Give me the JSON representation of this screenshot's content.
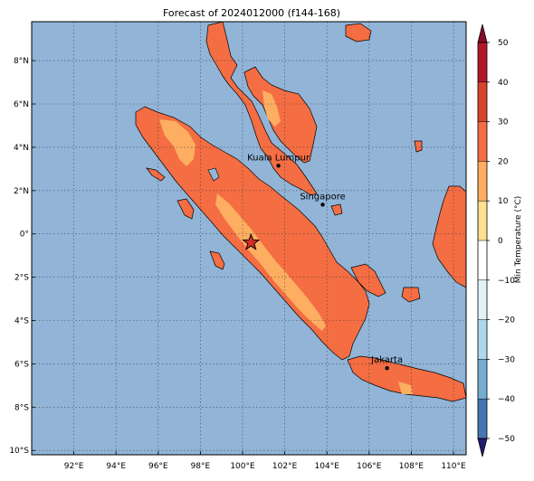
{
  "title": "Forecast of 2024012000 (f144-168)",
  "map": {
    "lon_range": [
      90,
      110.6
    ],
    "lat_range": [
      -10.2,
      9.8
    ],
    "lon_ticks": [
      92,
      94,
      96,
      98,
      100,
      102,
      104,
      106,
      108,
      110
    ],
    "lon_labels": [
      "92°E",
      "94°E",
      "96°E",
      "98°E",
      "100°E",
      "102°E",
      "104°E",
      "106°E",
      "108°E",
      "110°E"
    ],
    "lat_ticks": [
      8,
      6,
      4,
      2,
      0,
      -2,
      -4,
      -6,
      -8,
      -10
    ],
    "lat_labels": [
      "8°N",
      "6°N",
      "4°N",
      "2°N",
      "0°",
      "2°S",
      "4°S",
      "6°S",
      "8°S",
      "10°S"
    ],
    "grid": true,
    "ocean_color": "#91b4d7",
    "coast_color": "#000000"
  },
  "cities": [
    {
      "name": "Kuala Lumpur",
      "lon": 101.7,
      "lat": 3.15
    },
    {
      "name": "Singapore",
      "lon": 103.8,
      "lat": 1.35
    },
    {
      "name": "Jakarta",
      "lon": 106.85,
      "lat": -6.2
    }
  ],
  "marker": {
    "symbol": "star",
    "lon": 100.4,
    "lat": -0.4,
    "color": "#d73027"
  },
  "colorbar": {
    "label": "Min Temperature (°C)",
    "tick_values": [
      50,
      40,
      30,
      20,
      10,
      0,
      -10,
      -20,
      -30,
      -40,
      -50
    ],
    "tick_labels": [
      "50",
      "40",
      "30",
      "20",
      "10",
      "0",
      "−10",
      "−20",
      "−30",
      "−40",
      "−50"
    ],
    "extend": "both",
    "colors": [
      "#8b0b2a",
      "#b2182b",
      "#d6442b",
      "#f46d43",
      "#fdae61",
      "#fee090",
      "#ffffff",
      "#e0f3f8",
      "#abd9e9",
      "#74add1",
      "#4575b4",
      "#303f95",
      "#231d71"
    ]
  },
  "fields": {
    "level_20_30_color": "#f46d43",
    "level_10_20_color": "#fdae61"
  }
}
